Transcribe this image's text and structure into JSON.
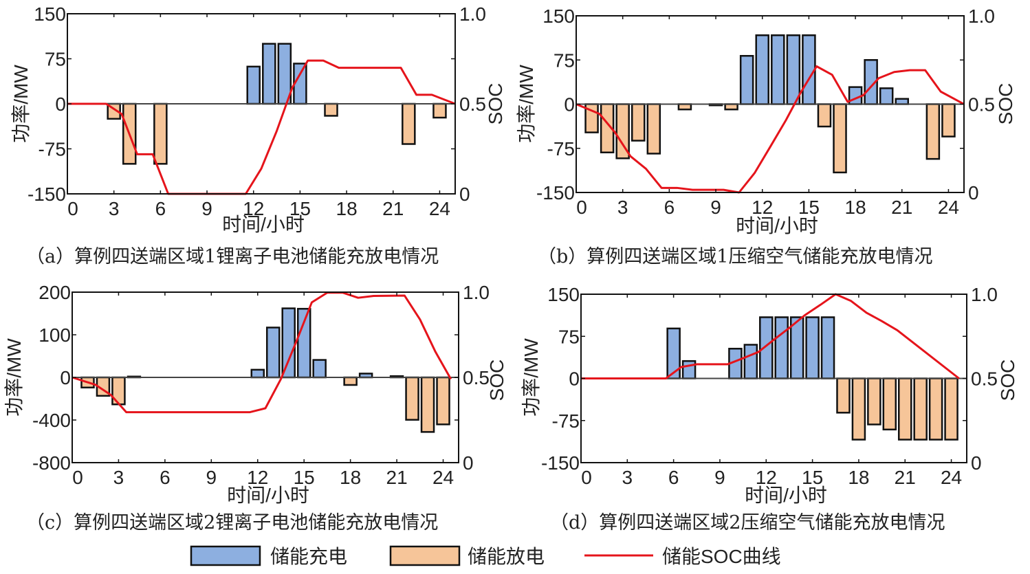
{
  "legend": {
    "charge_label": "储能充电",
    "discharge_label": "储能放电",
    "soc_label": "储能SOC曲线"
  },
  "colors": {
    "charge": "#8DAFE0",
    "discharge": "#F6C599",
    "soc": "#E5141B"
  },
  "chart_data": [
    {
      "type": "bar+line",
      "caption": "（a）算例四送端区域1锂离子电池储能充放电情况",
      "xlabel": "时间/小时",
      "ylabel_left": "功率/MW",
      "ylabel_right": "SOC",
      "xlim": [
        0,
        25
      ],
      "x_ticks": [
        "0",
        "3",
        "6",
        "9",
        "12",
        "15",
        "18",
        "21",
        "24"
      ],
      "y_left_ticks": [
        "150",
        "75",
        "0",
        "-75",
        "-150"
      ],
      "y_right_ticks": [
        "1.0",
        "0.5",
        "0"
      ],
      "y_right_lim": [
        0,
        1
      ],
      "bars": [
        {
          "hour": 3,
          "value": -25
        },
        {
          "hour": 4,
          "value": -100
        },
        {
          "hour": 6,
          "value": -100
        },
        {
          "hour": 12,
          "value": 62
        },
        {
          "hour": 13,
          "value": 100
        },
        {
          "hour": 14,
          "value": 100
        },
        {
          "hour": 15,
          "value": 67
        },
        {
          "hour": 17,
          "value": -20
        },
        {
          "hour": 22,
          "value": -67
        },
        {
          "hour": 24,
          "value": -23
        }
      ],
      "soc": {
        "x": [
          0,
          2.5,
          3.5,
          4.5,
          5.5,
          6.5,
          11.5,
          12.5,
          13.5,
          14.5,
          15.5,
          16.5,
          17.5,
          21.5,
          22.5,
          23.5,
          25
        ],
        "y": [
          0.5,
          0.5,
          0.443,
          0.22,
          0.22,
          0,
          0,
          0.14,
          0.35,
          0.59,
          0.74,
          0.74,
          0.7,
          0.7,
          0.55,
          0.55,
          0.5
        ]
      }
    },
    {
      "type": "bar+line",
      "caption": "（b）算例四送端区域1压缩空气储能充放电情况",
      "xlabel": "时间/小时",
      "ylabel_left": "功率/MW",
      "ylabel_right": "SOC",
      "xlim": [
        0,
        25
      ],
      "x_ticks": [
        "0",
        "3",
        "6",
        "9",
        "12",
        "15",
        "18",
        "21",
        "24"
      ],
      "y_left_ticks": [
        "150",
        "75",
        "0",
        "-75",
        "-150"
      ],
      "y_right_ticks": [
        "1.0",
        "0.5",
        "0"
      ],
      "y_right_lim": [
        0,
        1
      ],
      "bars": [
        {
          "hour": 1,
          "value": -48
        },
        {
          "hour": 2,
          "value": -82
        },
        {
          "hour": 3,
          "value": -92
        },
        {
          "hour": 4,
          "value": -62
        },
        {
          "hour": 5,
          "value": -84
        },
        {
          "hour": 7,
          "value": -9
        },
        {
          "hour": 9,
          "value": -2
        },
        {
          "hour": 10,
          "value": -9
        },
        {
          "hour": 11,
          "value": 82
        },
        {
          "hour": 12,
          "value": 117
        },
        {
          "hour": 13,
          "value": 117
        },
        {
          "hour": 14,
          "value": 117
        },
        {
          "hour": 15,
          "value": 117
        },
        {
          "hour": 16,
          "value": -38
        },
        {
          "hour": 17,
          "value": -116
        },
        {
          "hour": 18,
          "value": 29
        },
        {
          "hour": 19,
          "value": 75
        },
        {
          "hour": 20,
          "value": 27
        },
        {
          "hour": 21,
          "value": 9
        },
        {
          "hour": 23,
          "value": -93
        },
        {
          "hour": 24,
          "value": -55
        }
      ],
      "soc": {
        "x": [
          0,
          1.5,
          2.5,
          3.5,
          4.5,
          5.5,
          6.5,
          7.5,
          8.5,
          9.5,
          10.5,
          11.5,
          12.5,
          13.5,
          14.5,
          15.5,
          16.5,
          17.5,
          18.5,
          19.5,
          20.5,
          21.5,
          22.5,
          23.5,
          25
        ],
        "y": [
          0.5,
          0.445,
          0.34,
          0.205,
          0.134,
          0.026,
          0.026,
          0.015,
          0.015,
          0.015,
          0,
          0.11,
          0.257,
          0.406,
          0.57,
          0.714,
          0.666,
          0.513,
          0.55,
          0.647,
          0.682,
          0.692,
          0.692,
          0.571,
          0.5
        ]
      }
    },
    {
      "type": "bar+line",
      "caption": "（c）算例四送端区域2锂离子电池储能充放电情况",
      "xlabel": "时间/小时",
      "ylabel_left": "功率/MW",
      "ylabel_right": "SOC",
      "xlim": [
        0,
        25
      ],
      "x_ticks": [
        "0",
        "3",
        "6",
        "9",
        "12",
        "15",
        "18",
        "21",
        "24"
      ],
      "y_left_ticks": [
        "200",
        "100",
        "0",
        "-400",
        "-800"
      ],
      "y_right_ticks": [
        "1.0",
        "0.5",
        "0"
      ],
      "y_right_lim": [
        0,
        1
      ],
      "bars": [
        {
          "hour": 1,
          "value": -95
        },
        {
          "hour": 2,
          "value": -173
        },
        {
          "hour": 3,
          "value": -253
        },
        {
          "hour": 4,
          "value": 2
        },
        {
          "hour": 12,
          "value": 18
        },
        {
          "hour": 13,
          "value": 117
        },
        {
          "hour": 14,
          "value": 162
        },
        {
          "hour": 15,
          "value": 161
        },
        {
          "hour": 16,
          "value": 41
        },
        {
          "hour": 18,
          "value": -71
        },
        {
          "hour": 19,
          "value": 9
        },
        {
          "hour": 21,
          "value": 3
        },
        {
          "hour": 22,
          "value": -398
        },
        {
          "hour": 23,
          "value": -512
        },
        {
          "hour": 24,
          "value": -441
        }
      ],
      "soc": {
        "x": [
          0,
          1.5,
          2.5,
          3.5,
          11.5,
          12.5,
          13.5,
          14.5,
          15.5,
          16.5,
          17.5,
          18.5,
          19.5,
          21.5,
          22.5,
          23.5,
          24.5
        ],
        "y": [
          0.5,
          0.457,
          0.397,
          0.296,
          0.296,
          0.319,
          0.49,
          0.71,
          0.94,
          0.997,
          0.997,
          0.967,
          0.978,
          0.98,
          0.84,
          0.65,
          0.49
        ]
      }
    },
    {
      "type": "bar+line",
      "caption": "（d）算例四送端区域2压缩空气储能充放电情况",
      "xlabel": "时间/小时",
      "ylabel_left": "功率/MW",
      "ylabel_right": "SOC",
      "xlim": [
        0,
        25
      ],
      "x_ticks": [
        "0",
        "3",
        "6",
        "9",
        "12",
        "15",
        "18",
        "21",
        "24"
      ],
      "y_left_ticks": [
        "150",
        "75",
        "0",
        "-75",
        "-150"
      ],
      "y_right_ticks": [
        "1.0",
        "0.5",
        "0"
      ],
      "y_right_lim": [
        0,
        1
      ],
      "bars": [
        {
          "hour": 6,
          "value": 89
        },
        {
          "hour": 7,
          "value": 31
        },
        {
          "hour": 10,
          "value": 53
        },
        {
          "hour": 11,
          "value": 60
        },
        {
          "hour": 12,
          "value": 109
        },
        {
          "hour": 13,
          "value": 109
        },
        {
          "hour": 14,
          "value": 109
        },
        {
          "hour": 15,
          "value": 109
        },
        {
          "hour": 16,
          "value": 109
        },
        {
          "hour": 17,
          "value": -61
        },
        {
          "hour": 18,
          "value": -109
        },
        {
          "hour": 19,
          "value": -82
        },
        {
          "hour": 20,
          "value": -91
        },
        {
          "hour": 21,
          "value": -109
        },
        {
          "hour": 22,
          "value": -109
        },
        {
          "hour": 23,
          "value": -109
        },
        {
          "hour": 24,
          "value": -109
        }
      ],
      "soc": {
        "x": [
          0,
          5.5,
          6.5,
          7.5,
          9.5,
          10.5,
          11.5,
          12.5,
          13.5,
          14.5,
          15.5,
          16.5,
          17.5,
          18.5,
          19.5,
          20.5,
          24.5
        ],
        "y": [
          0.5,
          0.5,
          0.568,
          0.584,
          0.584,
          0.62,
          0.657,
          0.73,
          0.8,
          0.875,
          0.936,
          1.0,
          0.96,
          0.89,
          0.84,
          0.786,
          0.5
        ]
      }
    }
  ]
}
